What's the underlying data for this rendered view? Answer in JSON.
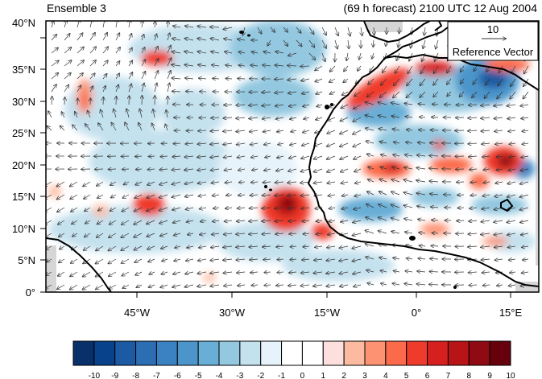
{
  "header": {
    "left_title": "Ensemble 3",
    "right_title": "(69 h forecast) 2100 UTC 12 Aug 2004"
  },
  "map": {
    "lat_labels": [
      "0°",
      "5°N",
      "10°N",
      "15°N",
      "20°N",
      "25°N",
      "30°N",
      "35°N",
      "40°N"
    ],
    "lon_labels": [
      "45°W",
      "30°W",
      "15°W",
      "0°",
      "15°E"
    ],
    "land_fill_color": "#d6d6d6",
    "coast_color": "#000000"
  },
  "reference_vector": {
    "value_label": "10",
    "caption": "Reference Vector"
  },
  "colorbar": {
    "tick_labels": [
      "-10",
      "-9",
      "-8",
      "-7",
      "-6",
      "-5",
      "-4",
      "-3",
      "-2",
      "-1",
      "0",
      "1",
      "2",
      "3",
      "4",
      "5",
      "6",
      "7",
      "8",
      "9",
      "10"
    ],
    "colors": [
      "#08306b",
      "#08428a",
      "#1c5aa3",
      "#2c6db3",
      "#3a82c1",
      "#4c95cb",
      "#69aed6",
      "#93c8e0",
      "#c4e1ee",
      "#e6f3fa",
      "#ffffff",
      "#ffffff",
      "#fde0dd",
      "#fcbba1",
      "#fc9272",
      "#fb6a4a",
      "#ef3b2c",
      "#d62020",
      "#b81316",
      "#8f0a12",
      "#67000d"
    ]
  }
}
